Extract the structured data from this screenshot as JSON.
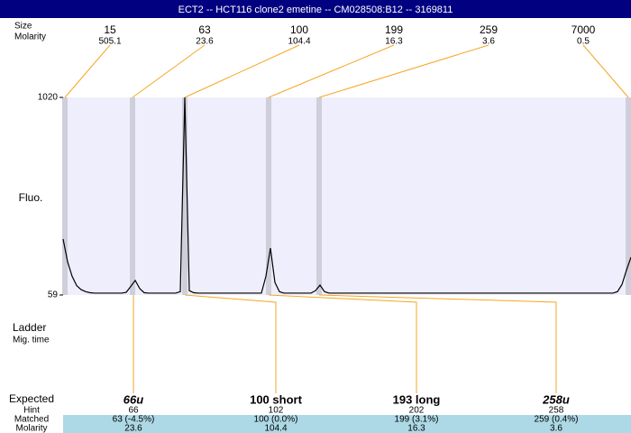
{
  "title": "ECT2 -- HCT116 clone2 emetine -- CM028508:B12 -- 3169811",
  "ladder": {
    "size_label": "Size",
    "molarity_label": "Molarity",
    "sizes": [
      15,
      63,
      100,
      199,
      259,
      7000
    ],
    "molarities": [
      505.1,
      23.6,
      104.4,
      16.3,
      3.6,
      0.5
    ]
  },
  "side_labels": {
    "ladder": "Ladder",
    "mig_time": "Mig. time"
  },
  "table": {
    "labels": [
      "Expected",
      "Hint",
      "Matched",
      "Molarity"
    ],
    "expected": [
      "66u",
      "100 short",
      "193 long",
      "258u"
    ],
    "hint": [
      "66",
      "102",
      "202",
      "258"
    ],
    "matched": [
      "63 (-4.5%)",
      "100 (0.0%)",
      "199 (3.1%)",
      "259 (0.4%)"
    ],
    "molarity": [
      "23.6",
      "104.4",
      "16.3",
      "3.6"
    ]
  },
  "chart_data": {
    "type": "line",
    "ylabel": "Fluo.",
    "ylim": [
      59,
      1020
    ],
    "yticks": [
      59,
      1020
    ],
    "color": "#000000",
    "values": [
      331,
      220,
      150,
      105,
      85,
      75,
      70,
      68,
      68,
      68,
      68,
      68,
      68,
      68,
      72,
      100,
      130,
      90,
      70,
      68,
      68,
      68,
      68,
      68,
      68,
      68,
      75,
      1020,
      80,
      70,
      68,
      68,
      68,
      68,
      68,
      68,
      68,
      68,
      68,
      68,
      68,
      68,
      68,
      68,
      68,
      150,
      287,
      120,
      75,
      68,
      68,
      68,
      68,
      68,
      68,
      68,
      80,
      107,
      75,
      68,
      68,
      68,
      68,
      68,
      68,
      68,
      68,
      68,
      68,
      68,
      68,
      68,
      68,
      68,
      68,
      68,
      68,
      68,
      68,
      68,
      68,
      68,
      68,
      68,
      68,
      68,
      68,
      68,
      68,
      68,
      68,
      68,
      68,
      68,
      68,
      68,
      68,
      68,
      68,
      68,
      68,
      68,
      68,
      68,
      68,
      68,
      68,
      68,
      68,
      68,
      68,
      68,
      68,
      68,
      68,
      68,
      68,
      68,
      68,
      68,
      68,
      68,
      68,
      75,
      110,
      180,
      243
    ]
  }
}
